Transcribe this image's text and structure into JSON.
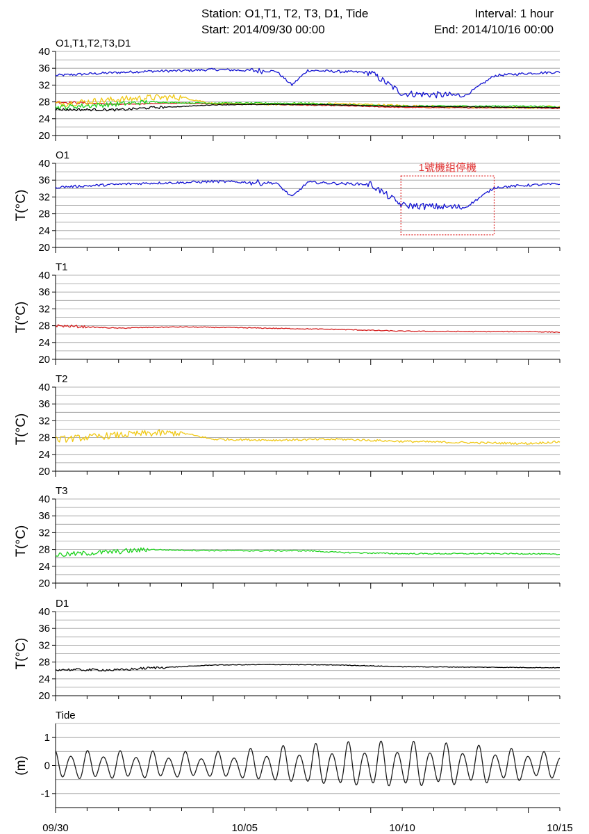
{
  "header": {
    "station": "Station: O1,T1, T2, T3, D1, Tide",
    "interval": "Interval: 1 hour",
    "start": "Start: 2014/09/30 00:00",
    "end": "End: 2014/10/16 00:00"
  },
  "colors": {
    "O1": "#1414d2",
    "T1": "#d41e1e",
    "T2": "#f0c814",
    "T3": "#1ed21e",
    "D1": "#000000",
    "Tide": "#1a1a1a",
    "annotation": "#e03030",
    "grid": "#9a9a9a"
  },
  "annotation": {
    "text": "1號機組停機",
    "panel": 1,
    "x_start": "10/09 23:00",
    "x_end": "10/12 22:00",
    "y_range": [
      23,
      37
    ]
  },
  "chart_data": [
    {
      "type": "line",
      "title": "O1,T1,T2,T3,D1",
      "ylabel": "",
      "ylim": [
        20,
        40
      ],
      "yticks": [
        20,
        24,
        28,
        32,
        36,
        40
      ],
      "grid": true,
      "xlim": [
        "09/30",
        "10/16"
      ],
      "series": [
        {
          "name": "O1",
          "color_key": "O1",
          "x": [
            "09/30",
            "10/01",
            "10/02",
            "10/03",
            "10/04",
            "10/05",
            "10/06",
            "10/06 12h",
            "10/07",
            "10/08",
            "10/09",
            "10/10",
            "10/11",
            "10/12",
            "10/12 22h",
            "10/13",
            "10/14",
            "10/15",
            "10/16"
          ],
          "y": [
            34.3,
            35.0,
            35.3,
            35.4,
            35.7,
            35.5,
            35.3,
            32.0,
            35.5,
            35.2,
            35.0,
            30.0,
            29.7,
            29.5,
            34.2,
            34.3,
            34.8,
            35.1,
            34.5
          ]
        },
        {
          "name": "T1",
          "color_key": "T1",
          "x": [
            "09/30",
            "10/01",
            "10/02",
            "10/03",
            "10/05",
            "10/08",
            "10/10",
            "10/12",
            "10/14",
            "10/16"
          ],
          "y": [
            28.0,
            27.4,
            27.6,
            27.7,
            27.5,
            27.1,
            26.7,
            26.6,
            26.6,
            26.3
          ]
        },
        {
          "name": "T2",
          "color_key": "T2",
          "x": [
            "09/30",
            "10/01",
            "10/02",
            "10/03",
            "10/04",
            "10/06",
            "10/08",
            "10/10",
            "10/12",
            "10/14",
            "10/15 12h",
            "10/16"
          ],
          "y": [
            27.5,
            28.6,
            29.0,
            29.1,
            27.6,
            27.4,
            27.6,
            27.1,
            26.8,
            26.6,
            27.2,
            28.0
          ]
        },
        {
          "name": "T3",
          "color_key": "T3",
          "x": [
            "09/30",
            "10/01",
            "10/02",
            "10/03",
            "10/05",
            "10/07",
            "10/08",
            "10/10",
            "10/12",
            "10/14",
            "10/16"
          ],
          "y": [
            26.7,
            27.5,
            28.0,
            27.8,
            27.7,
            27.7,
            27.3,
            27.0,
            27.0,
            27.0,
            26.6
          ]
        },
        {
          "name": "D1",
          "color_key": "D1",
          "x": [
            "09/30",
            "10/01",
            "10/02",
            "10/03",
            "10/04",
            "10/06",
            "10/08",
            "10/10",
            "10/12",
            "10/14",
            "10/16"
          ],
          "y": [
            26.2,
            26.1,
            26.6,
            26.9,
            27.3,
            27.4,
            27.3,
            26.9,
            26.8,
            26.7,
            26.6
          ]
        }
      ]
    },
    {
      "type": "line",
      "title": "O1",
      "ylabel": "T(°C)",
      "ylim": [
        20,
        40
      ],
      "yticks": [
        20,
        24,
        28,
        32,
        36,
        40
      ],
      "grid": true,
      "series": [
        {
          "name": "O1",
          "color_key": "O1",
          "x": [
            "09/30",
            "10/01",
            "10/02",
            "10/03",
            "10/04",
            "10/05",
            "10/06",
            "10/06 12h",
            "10/07",
            "10/08",
            "10/09",
            "10/10",
            "10/11",
            "10/12",
            "10/12 22h",
            "10/13",
            "10/14",
            "10/15",
            "10/16"
          ],
          "y": [
            34.3,
            35.0,
            35.3,
            35.4,
            35.7,
            35.5,
            35.3,
            32.0,
            35.5,
            35.2,
            35.0,
            30.0,
            29.7,
            29.5,
            34.2,
            34.3,
            34.8,
            35.1,
            34.5
          ]
        }
      ]
    },
    {
      "type": "line",
      "title": "T1",
      "ylabel": "T(°C)",
      "ylim": [
        20,
        40
      ],
      "yticks": [
        20,
        24,
        28,
        32,
        36,
        40
      ],
      "grid": true,
      "series": [
        {
          "name": "T1",
          "color_key": "T1",
          "x": [
            "09/30",
            "10/01",
            "10/02",
            "10/03",
            "10/05",
            "10/08",
            "10/10",
            "10/12",
            "10/14",
            "10/16"
          ],
          "y": [
            28.0,
            27.4,
            27.6,
            27.7,
            27.5,
            27.1,
            26.7,
            26.6,
            26.6,
            26.3
          ]
        }
      ]
    },
    {
      "type": "line",
      "title": "T2",
      "ylabel": "T(°C)",
      "ylim": [
        20,
        40
      ],
      "yticks": [
        20,
        24,
        28,
        32,
        36,
        40
      ],
      "grid": true,
      "series": [
        {
          "name": "T2",
          "color_key": "T2",
          "x": [
            "09/30",
            "10/01",
            "10/02",
            "10/03",
            "10/04",
            "10/06",
            "10/08",
            "10/10",
            "10/12",
            "10/14",
            "10/15 12h",
            "10/16"
          ],
          "y": [
            27.5,
            28.6,
            29.0,
            29.1,
            27.6,
            27.4,
            27.6,
            27.1,
            26.8,
            26.6,
            27.2,
            28.0
          ]
        }
      ]
    },
    {
      "type": "line",
      "title": "T3",
      "ylabel": "T(°C)",
      "ylim": [
        20,
        40
      ],
      "yticks": [
        20,
        24,
        28,
        32,
        36,
        40
      ],
      "grid": true,
      "series": [
        {
          "name": "T3",
          "color_key": "T3",
          "x": [
            "09/30",
            "10/01",
            "10/02",
            "10/03",
            "10/05",
            "10/07",
            "10/08",
            "10/10",
            "10/12",
            "10/14",
            "10/16"
          ],
          "y": [
            26.7,
            27.5,
            28.0,
            27.8,
            27.7,
            27.7,
            27.3,
            27.0,
            27.0,
            27.0,
            26.6
          ]
        }
      ]
    },
    {
      "type": "line",
      "title": "D1",
      "ylabel": "T(°C)",
      "ylim": [
        20,
        40
      ],
      "yticks": [
        20,
        24,
        28,
        32,
        36,
        40
      ],
      "grid": true,
      "series": [
        {
          "name": "D1",
          "color_key": "D1",
          "x": [
            "09/30",
            "10/01",
            "10/02",
            "10/03",
            "10/04",
            "10/06",
            "10/08",
            "10/10",
            "10/12",
            "10/14",
            "10/16"
          ],
          "y": [
            26.2,
            26.1,
            26.6,
            26.9,
            27.3,
            27.4,
            27.3,
            26.9,
            26.8,
            26.7,
            26.6
          ]
        }
      ]
    },
    {
      "type": "line",
      "title": "Tide",
      "ylabel": "(m)",
      "ylim": [
        -1.5,
        1.5
      ],
      "yticks": [
        -1,
        0,
        1
      ],
      "grid": true,
      "xticks": [
        "09/30",
        "10/05",
        "10/10",
        "10/15"
      ],
      "series": [
        {
          "name": "Tide",
          "color_key": "Tide",
          "description_free": true,
          "x": [
            "09/30",
            "10/02",
            "10/04",
            "10/06",
            "10/08",
            "10/10",
            "10/12",
            "10/14",
            "10/16"
          ],
          "amplitude": [
            0.55,
            0.5,
            0.45,
            0.65,
            0.8,
            0.85,
            0.75,
            0.55,
            0.35
          ]
        }
      ]
    }
  ]
}
